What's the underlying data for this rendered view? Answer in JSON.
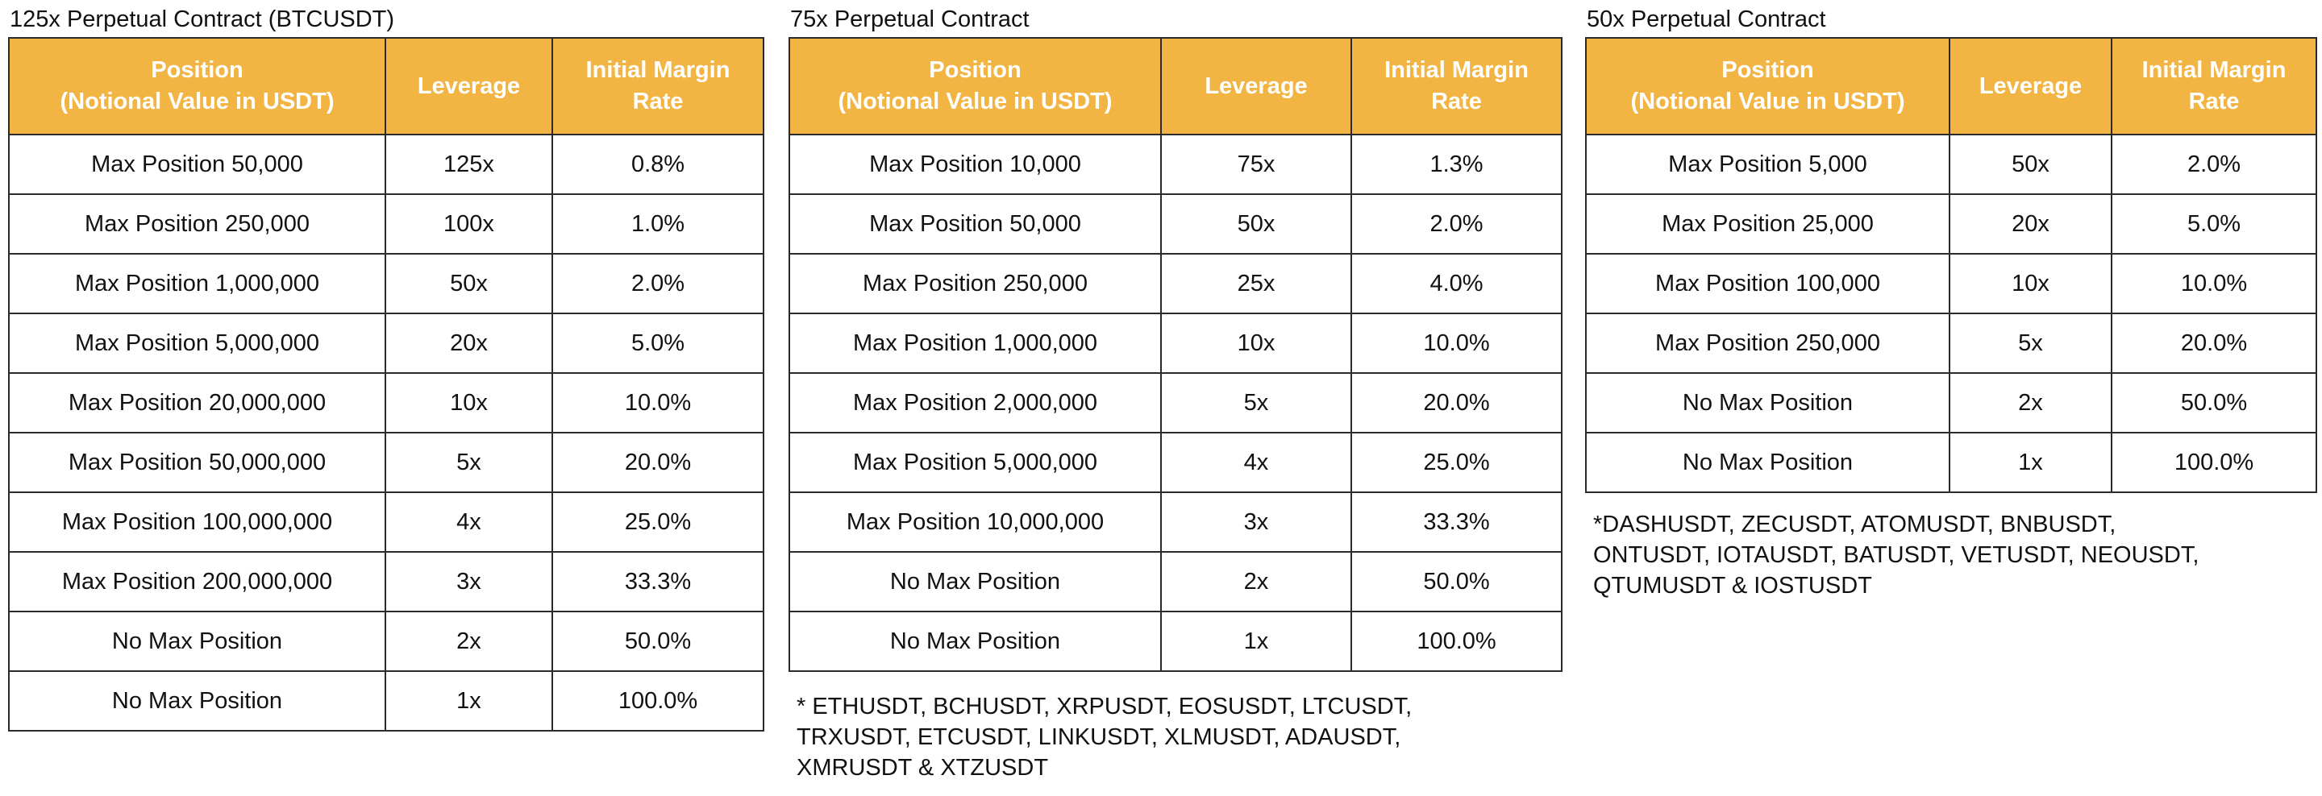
{
  "header_colors": {
    "fill": "#f2b544",
    "text": "#ffffff",
    "border": "#2b2b2b"
  },
  "panels": [
    {
      "title": "125x Perpetual Contract (BTCUSDT)",
      "headers": {
        "position_line1": "Position",
        "position_line2": "(Notional Value in USDT)",
        "leverage": "Leverage",
        "margin_line1": "Initial Margin",
        "margin_line2": "Rate"
      },
      "rows": [
        {
          "position": "Max Position 50,000",
          "leverage": "125x",
          "margin": "0.8%"
        },
        {
          "position": "Max Position 250,000",
          "leverage": "100x",
          "margin": "1.0%"
        },
        {
          "position": "Max Position 1,000,000",
          "leverage": "50x",
          "margin": "2.0%"
        },
        {
          "position": "Max Position 5,000,000",
          "leverage": "20x",
          "margin": "5.0%"
        },
        {
          "position": "Max Position 20,000,000",
          "leverage": "10x",
          "margin": "10.0%"
        },
        {
          "position": "Max Position 50,000,000",
          "leverage": "5x",
          "margin": "20.0%"
        },
        {
          "position": "Max Position 100,000,000",
          "leverage": "4x",
          "margin": "25.0%"
        },
        {
          "position": "Max Position 200,000,000",
          "leverage": "3x",
          "margin": "33.3%"
        },
        {
          "position": "No Max Position",
          "leverage": "2x",
          "margin": "50.0%"
        },
        {
          "position": "No Max Position",
          "leverage": "1x",
          "margin": "100.0%"
        }
      ],
      "note_lines": []
    },
    {
      "title": "75x Perpetual Contract",
      "headers": {
        "position_line1": "Position",
        "position_line2": "(Notional Value in USDT)",
        "leverage": "Leverage",
        "margin_line1": "Initial Margin",
        "margin_line2": "Rate"
      },
      "rows": [
        {
          "position": "Max Position 10,000",
          "leverage": "75x",
          "margin": "1.3%"
        },
        {
          "position": "Max Position 50,000",
          "leverage": "50x",
          "margin": "2.0%"
        },
        {
          "position": "Max Position 250,000",
          "leverage": "25x",
          "margin": "4.0%"
        },
        {
          "position": "Max Position 1,000,000",
          "leverage": "10x",
          "margin": "10.0%"
        },
        {
          "position": "Max Position 2,000,000",
          "leverage": "5x",
          "margin": "20.0%"
        },
        {
          "position": "Max Position 5,000,000",
          "leverage": "4x",
          "margin": "25.0%"
        },
        {
          "position": "Max Position 10,000,000",
          "leverage": "3x",
          "margin": "33.3%"
        },
        {
          "position": "No Max Position",
          "leverage": "2x",
          "margin": "50.0%"
        },
        {
          "position": "No Max Position",
          "leverage": "1x",
          "margin": "100.0%"
        }
      ],
      "note_lines": [
        "* ETHUSDT, BCHUSDT,  XRPUSDT, EOSUSDT, LTCUSDT,",
        "TRXUSDT, ETCUSDT, LINKUSDT, XLMUSDT, ADAUSDT,",
        "XMRUSDT & XTZUSDT"
      ]
    },
    {
      "title": "50x Perpetual Contract",
      "headers": {
        "position_line1": "Position",
        "position_line2": "(Notional Value in USDT)",
        "leverage": "Leverage",
        "margin_line1": "Initial Margin",
        "margin_line2": "Rate"
      },
      "rows": [
        {
          "position": "Max Position 5,000",
          "leverage": "50x",
          "margin": "2.0%"
        },
        {
          "position": "Max Position 25,000",
          "leverage": "20x",
          "margin": "5.0%"
        },
        {
          "position": "Max Position 100,000",
          "leverage": "10x",
          "margin": "10.0%"
        },
        {
          "position": "Max Position 250,000",
          "leverage": "5x",
          "margin": "20.0%"
        },
        {
          "position": "No Max Position",
          "leverage": "2x",
          "margin": "50.0%"
        },
        {
          "position": "No Max Position",
          "leverage": "1x",
          "margin": "100.0%"
        }
      ],
      "note_lines": [
        "*DASHUSDT, ZECUSDT, ATOMUSDT, BNBUSDT,",
        "ONTUSDT, IOTAUSDT, BATUSDT, VETUSDT, NEOUSDT,",
        "QTUMUSDT & IOSTUSDT"
      ]
    }
  ]
}
